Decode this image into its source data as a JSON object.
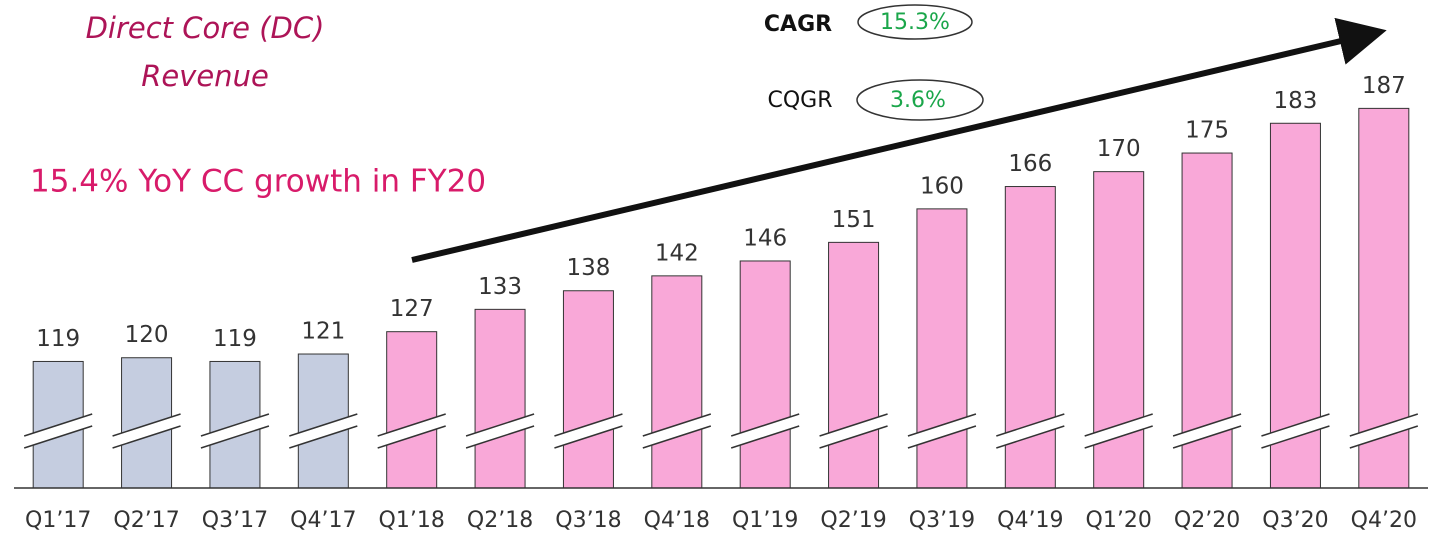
{
  "chart_data": {
    "type": "bar",
    "title": [
      "Direct Core (DC)",
      "Revenue"
    ],
    "subtitle": "15.4% YoY CC growth in FY20",
    "annotations": [
      {
        "label": "CAGR",
        "value": "15.3%"
      },
      {
        "label": "CQGR",
        "value": "3.6%"
      }
    ],
    "categories": [
      "Q1’17",
      "Q2’17",
      "Q3’17",
      "Q4’17",
      "Q1’18",
      "Q2’18",
      "Q3’18",
      "Q4’18",
      "Q1’19",
      "Q2’19",
      "Q3’19",
      "Q4’19",
      "Q1’20",
      "Q2’20",
      "Q3’20",
      "Q4’20"
    ],
    "values": [
      119,
      120,
      119,
      121,
      127,
      133,
      138,
      142,
      146,
      151,
      160,
      166,
      170,
      175,
      183,
      187
    ],
    "colors": [
      "#c5cde0",
      "#c5cde0",
      "#c5cde0",
      "#c5cde0",
      "#f9a8d8",
      "#f9a8d8",
      "#f9a8d8",
      "#f9a8d8",
      "#f9a8d8",
      "#f9a8d8",
      "#f9a8d8",
      "#f9a8d8",
      "#f9a8d8",
      "#f9a8d8",
      "#f9a8d8",
      "#f9a8d8"
    ],
    "ylim": [
      85,
      200
    ]
  }
}
